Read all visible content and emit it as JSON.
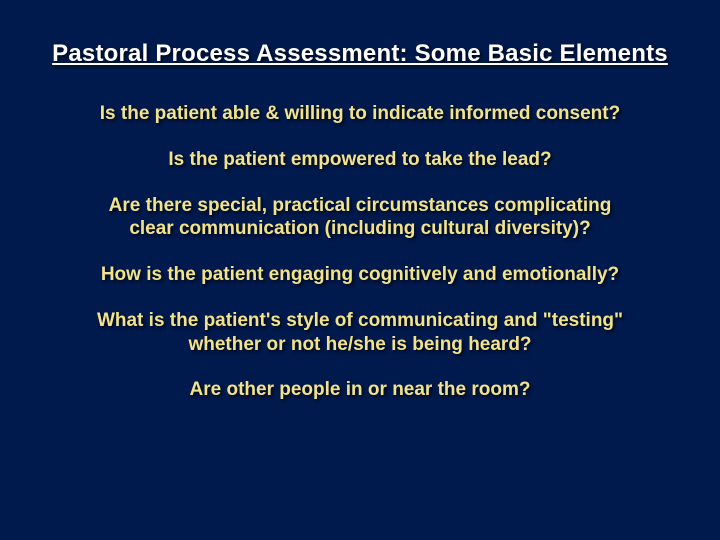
{
  "slide": {
    "background_color": "#001a4d",
    "title": {
      "text": "Pastoral Process Assessment: Some Basic Elements",
      "color": "#ffffff",
      "font_size_pt": 18,
      "font_weight": "bold",
      "underline": true
    },
    "bullet_style": {
      "color": "#f2e28c",
      "font_size_pt": 14,
      "font_weight": "bold",
      "text_align": "center",
      "shadow": true
    },
    "bullets": [
      "Is the patient able & willing to indicate informed consent?",
      "Is the patient empowered to take the lead?",
      "Are there special, practical circumstances complicating clear communication (including cultural diversity)?",
      "How is the patient engaging cognitively and emotionally?",
      "What is the patient's style of communicating and \"testing\" whether or not he/she is being heard?",
      "Are other people in or near the room?"
    ]
  }
}
